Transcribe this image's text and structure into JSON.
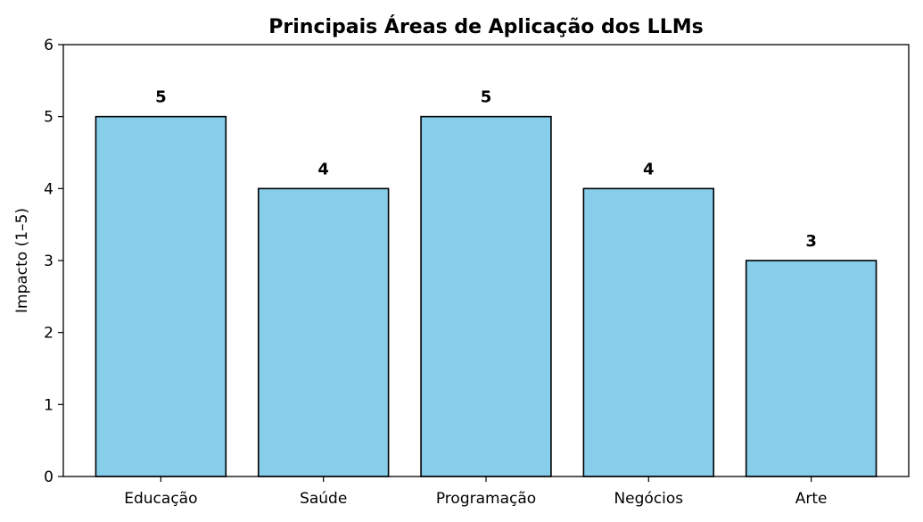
{
  "chart_data": {
    "type": "bar",
    "title": "Principais Áreas de Aplicação dos LLMs",
    "xlabel": "",
    "ylabel": "Impacto (1–5)",
    "categories": [
      "Educação",
      "Saúde",
      "Programação",
      "Negócios",
      "Arte"
    ],
    "values": [
      5,
      4,
      5,
      4,
      3
    ],
    "ylim": [
      0,
      6
    ],
    "yticks": [
      0,
      1,
      2,
      3,
      4,
      5,
      6
    ],
    "grid": false,
    "colors": {
      "bar_fill": "#87CEEB",
      "bar_edge": "#000000"
    }
  }
}
